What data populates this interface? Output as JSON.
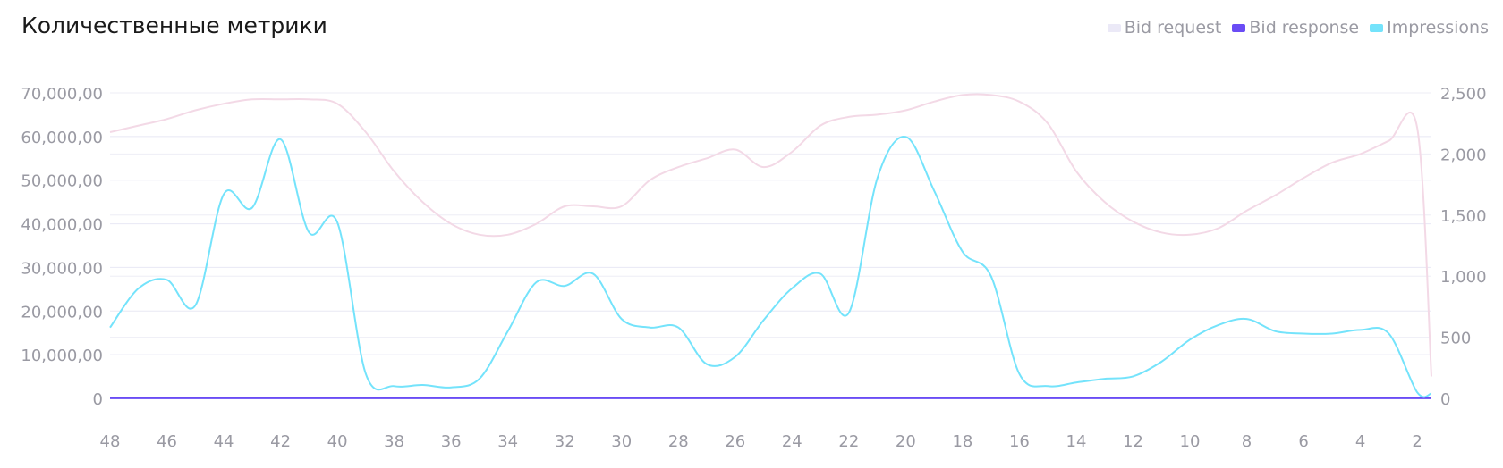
{
  "header": {
    "title": "Количественные метрики"
  },
  "legend": [
    {
      "label": "Bid request",
      "color": "#ebe9f7"
    },
    {
      "label": "Bid response",
      "color": "#6a4cf5"
    },
    {
      "label": "Impressions",
      "color": "#74e3fb"
    }
  ],
  "chart_data": {
    "type": "line",
    "grid": true,
    "legend_position": "top-right",
    "x_tick_labels": [
      "48",
      "46",
      "44",
      "42",
      "40",
      "38",
      "36",
      "34",
      "32",
      "30",
      "28",
      "26",
      "24",
      "22",
      "20",
      "18",
      "16",
      "14",
      "12",
      "10",
      "8",
      "6",
      "4",
      "2"
    ],
    "y_left": {
      "ylim": [
        0,
        70000
      ],
      "tick_labels": [
        "0",
        "10,000,00",
        "20,000,00",
        "30,000,00",
        "40,000,00",
        "50,000,00",
        "60,000,00",
        "70,000,00"
      ]
    },
    "y_right": {
      "ylim": [
        0,
        2500
      ],
      "tick_labels": [
        "0",
        "500",
        "1,000",
        "1,500",
        "2,000",
        "2,500"
      ]
    },
    "x": [
      48,
      47,
      46,
      45,
      44,
      43,
      42,
      41,
      40,
      39,
      38,
      37,
      36,
      35,
      34,
      33,
      32,
      31,
      30,
      29,
      28,
      27,
      26,
      25,
      24,
      23,
      22,
      21,
      20,
      19,
      18,
      17,
      16,
      15,
      14,
      13,
      12,
      11,
      10,
      9,
      8,
      7,
      6,
      5,
      4,
      3,
      2,
      1.5
    ],
    "series": [
      {
        "name": "Bid request",
        "axis": "left",
        "color": "#f3d9e6",
        "values": [
          61000,
          62500,
          64000,
          66000,
          67500,
          68500,
          68500,
          68500,
          67500,
          61000,
          52000,
          45000,
          40000,
          37500,
          37500,
          40000,
          44000,
          44000,
          44000,
          50000,
          53000,
          55000,
          57000,
          53000,
          56500,
          62500,
          64500,
          65000,
          66000,
          68000,
          69500,
          69500,
          68000,
          63000,
          52000,
          45000,
          40500,
          38000,
          37500,
          39000,
          43000,
          46500,
          50500,
          54000,
          56000,
          59000,
          62000,
          5000
        ]
      },
      {
        "name": "Bid response",
        "axis": "right",
        "color": "#6a4cf5",
        "values": [
          3,
          3,
          3,
          3,
          3,
          3,
          3,
          3,
          3,
          3,
          3,
          3,
          3,
          3,
          3,
          3,
          3,
          3,
          3,
          3,
          3,
          3,
          3,
          3,
          3,
          3,
          3,
          3,
          3,
          3,
          3,
          3,
          3,
          3,
          3,
          3,
          3,
          3,
          3,
          3,
          3,
          3,
          3,
          3,
          3,
          3,
          3,
          3
        ]
      },
      {
        "name": "Impressions",
        "axis": "right",
        "color": "#74e3fb",
        "values": [
          580,
          900,
          970,
          760,
          1670,
          1560,
          2120,
          1360,
          1440,
          200,
          100,
          110,
          90,
          160,
          550,
          950,
          920,
          1020,
          650,
          580,
          580,
          280,
          340,
          640,
          900,
          1020,
          700,
          1800,
          2140,
          1700,
          1200,
          1000,
          200,
          100,
          130,
          160,
          180,
          300,
          480,
          600,
          650,
          550,
          530,
          530,
          560,
          530,
          50,
          40
        ]
      }
    ]
  }
}
